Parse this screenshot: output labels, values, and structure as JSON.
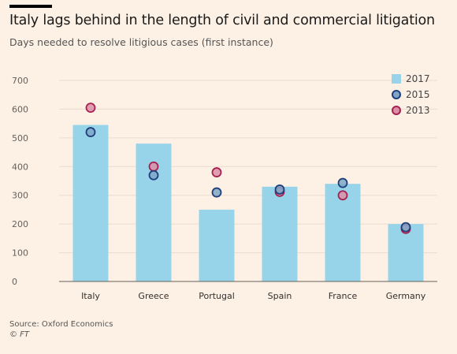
{
  "header": {
    "title": "Italy lags behind in the length of civil and commercial litigation",
    "subtitle": "Days needed to resolve litigious cases (first instance)"
  },
  "footer": {
    "source": "Source: Oxford Economics",
    "credit": "© FT"
  },
  "colors": {
    "background": "#fdf1e5",
    "bar_2017": "#97d4ea",
    "dot_2015_fill": "#7fa6c7",
    "dot_2015_stroke": "#1e3f7a",
    "dot_2013_fill": "#d98fa8",
    "dot_2013_stroke": "#a8204f"
  },
  "chart_data": {
    "type": "bar",
    "categories": [
      "Italy",
      "Greece",
      "Portugal",
      "Spain",
      "France",
      "Germany"
    ],
    "series": [
      {
        "name": "2017",
        "mark": "bar",
        "values": [
          545,
          480,
          250,
          330,
          340,
          200
        ]
      },
      {
        "name": "2015",
        "mark": "dot",
        "values": [
          520,
          370,
          310,
          320,
          343,
          189
        ]
      },
      {
        "name": "2013",
        "mark": "dot",
        "values": [
          605,
          400,
          380,
          312,
          300,
          183
        ]
      }
    ],
    "ylim": [
      0,
      700
    ],
    "yticks": [
      0,
      100,
      200,
      300,
      400,
      500,
      600,
      700
    ],
    "grid": true,
    "legend_position": "top-right"
  }
}
